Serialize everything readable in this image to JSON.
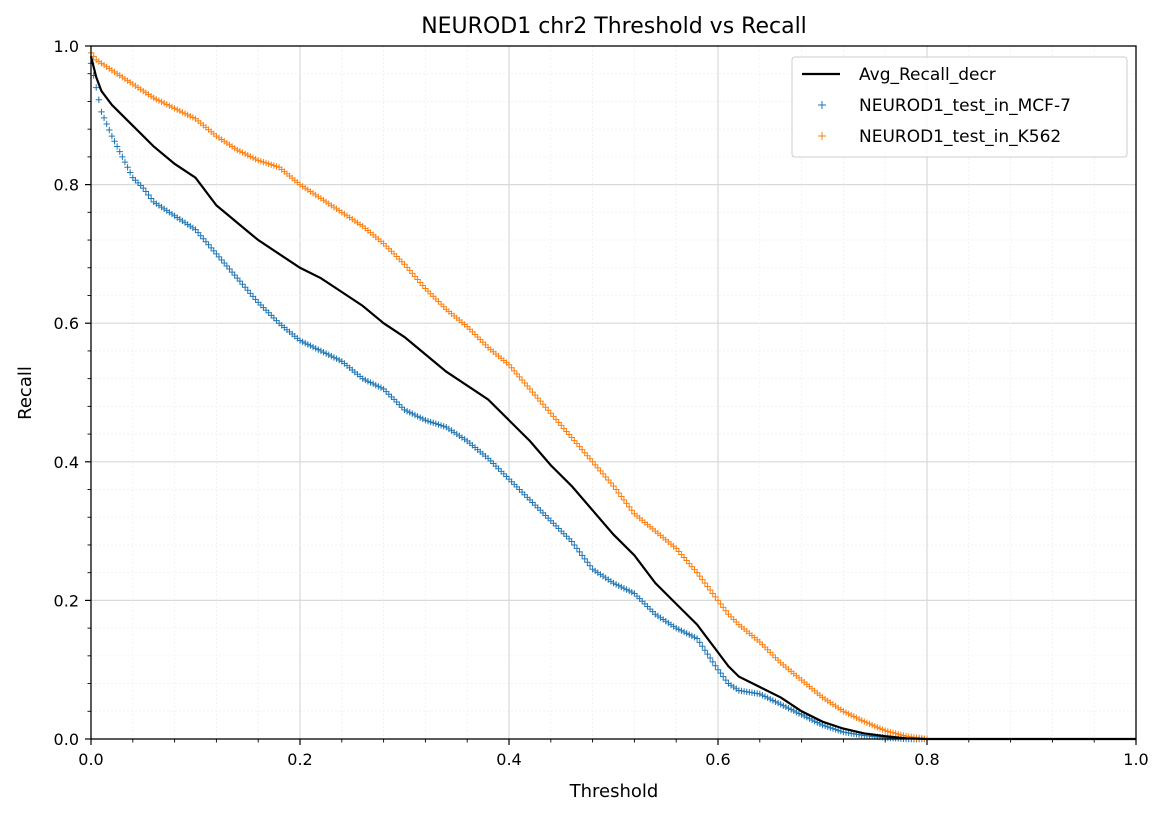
{
  "chart_data": {
    "type": "line",
    "title": "NEUROD1 chr2 Threshold vs Recall",
    "xlabel": "Threshold",
    "ylabel": "Recall",
    "xlim": [
      0.0,
      1.0
    ],
    "ylim": [
      0.0,
      1.0
    ],
    "x_ticks": [
      "0.0",
      "0.2",
      "0.4",
      "0.6",
      "0.8",
      "1.0"
    ],
    "y_ticks": [
      "0.0",
      "0.2",
      "0.4",
      "0.6",
      "0.8",
      "1.0"
    ],
    "grid": "major and minor",
    "legend_position": "upper right",
    "series": [
      {
        "name": "Avg_Recall_decr",
        "style": "line",
        "color": "#000000",
        "x": [
          0.0,
          0.005,
          0.01,
          0.02,
          0.03,
          0.04,
          0.05,
          0.06,
          0.08,
          0.1,
          0.12,
          0.14,
          0.16,
          0.18,
          0.2,
          0.22,
          0.24,
          0.26,
          0.28,
          0.3,
          0.32,
          0.34,
          0.36,
          0.38,
          0.4,
          0.42,
          0.44,
          0.46,
          0.48,
          0.5,
          0.52,
          0.54,
          0.56,
          0.58,
          0.6,
          0.61,
          0.62,
          0.64,
          0.66,
          0.68,
          0.7,
          0.72,
          0.74,
          0.76,
          0.78,
          0.8,
          0.9,
          1.0
        ],
        "y": [
          0.985,
          0.955,
          0.935,
          0.915,
          0.9,
          0.885,
          0.87,
          0.855,
          0.83,
          0.81,
          0.77,
          0.745,
          0.72,
          0.7,
          0.68,
          0.665,
          0.645,
          0.625,
          0.6,
          0.58,
          0.555,
          0.53,
          0.51,
          0.49,
          0.46,
          0.43,
          0.395,
          0.365,
          0.33,
          0.295,
          0.265,
          0.225,
          0.195,
          0.165,
          0.125,
          0.105,
          0.09,
          0.075,
          0.06,
          0.04,
          0.025,
          0.015,
          0.008,
          0.004,
          0.001,
          0.0,
          0.0,
          0.0
        ]
      },
      {
        "name": "NEUROD1_test_in_MCF-7",
        "style": "markers",
        "marker": "+",
        "color": "#1f77b4",
        "x": [
          0.0,
          0.005,
          0.01,
          0.02,
          0.03,
          0.04,
          0.05,
          0.06,
          0.08,
          0.1,
          0.12,
          0.14,
          0.16,
          0.18,
          0.2,
          0.22,
          0.24,
          0.26,
          0.28,
          0.3,
          0.32,
          0.34,
          0.36,
          0.38,
          0.4,
          0.42,
          0.44,
          0.46,
          0.48,
          0.5,
          0.52,
          0.54,
          0.56,
          0.58,
          0.6,
          0.61,
          0.62,
          0.64,
          0.66,
          0.68,
          0.7,
          0.72,
          0.74,
          0.76,
          0.78,
          0.8,
          0.9,
          1.0
        ],
        "y": [
          0.975,
          0.94,
          0.905,
          0.87,
          0.84,
          0.81,
          0.795,
          0.775,
          0.755,
          0.735,
          0.7,
          0.665,
          0.63,
          0.6,
          0.575,
          0.56,
          0.545,
          0.52,
          0.505,
          0.475,
          0.46,
          0.45,
          0.43,
          0.405,
          0.375,
          0.345,
          0.315,
          0.285,
          0.245,
          0.225,
          0.21,
          0.18,
          0.16,
          0.145,
          0.1,
          0.08,
          0.07,
          0.065,
          0.05,
          0.035,
          0.02,
          0.01,
          0.005,
          0.002,
          0.0,
          0.0,
          0.0,
          0.0
        ]
      },
      {
        "name": "NEUROD1_test_in_K562",
        "style": "markers",
        "marker": "+",
        "color": "#ff7f0e",
        "x": [
          0.0,
          0.005,
          0.01,
          0.02,
          0.03,
          0.04,
          0.05,
          0.06,
          0.08,
          0.1,
          0.12,
          0.14,
          0.16,
          0.18,
          0.2,
          0.22,
          0.24,
          0.26,
          0.28,
          0.3,
          0.32,
          0.34,
          0.36,
          0.38,
          0.4,
          0.42,
          0.44,
          0.46,
          0.48,
          0.5,
          0.52,
          0.54,
          0.56,
          0.58,
          0.6,
          0.61,
          0.62,
          0.64,
          0.66,
          0.68,
          0.7,
          0.72,
          0.74,
          0.76,
          0.78,
          0.8,
          0.9,
          1.0
        ],
        "y": [
          0.99,
          0.98,
          0.975,
          0.965,
          0.955,
          0.945,
          0.935,
          0.925,
          0.91,
          0.895,
          0.87,
          0.85,
          0.835,
          0.825,
          0.8,
          0.78,
          0.76,
          0.74,
          0.715,
          0.685,
          0.65,
          0.62,
          0.595,
          0.565,
          0.54,
          0.505,
          0.47,
          0.435,
          0.4,
          0.365,
          0.325,
          0.3,
          0.275,
          0.24,
          0.2,
          0.18,
          0.165,
          0.14,
          0.11,
          0.085,
          0.06,
          0.04,
          0.025,
          0.012,
          0.004,
          0.0,
          0.0,
          0.0
        ]
      }
    ]
  }
}
